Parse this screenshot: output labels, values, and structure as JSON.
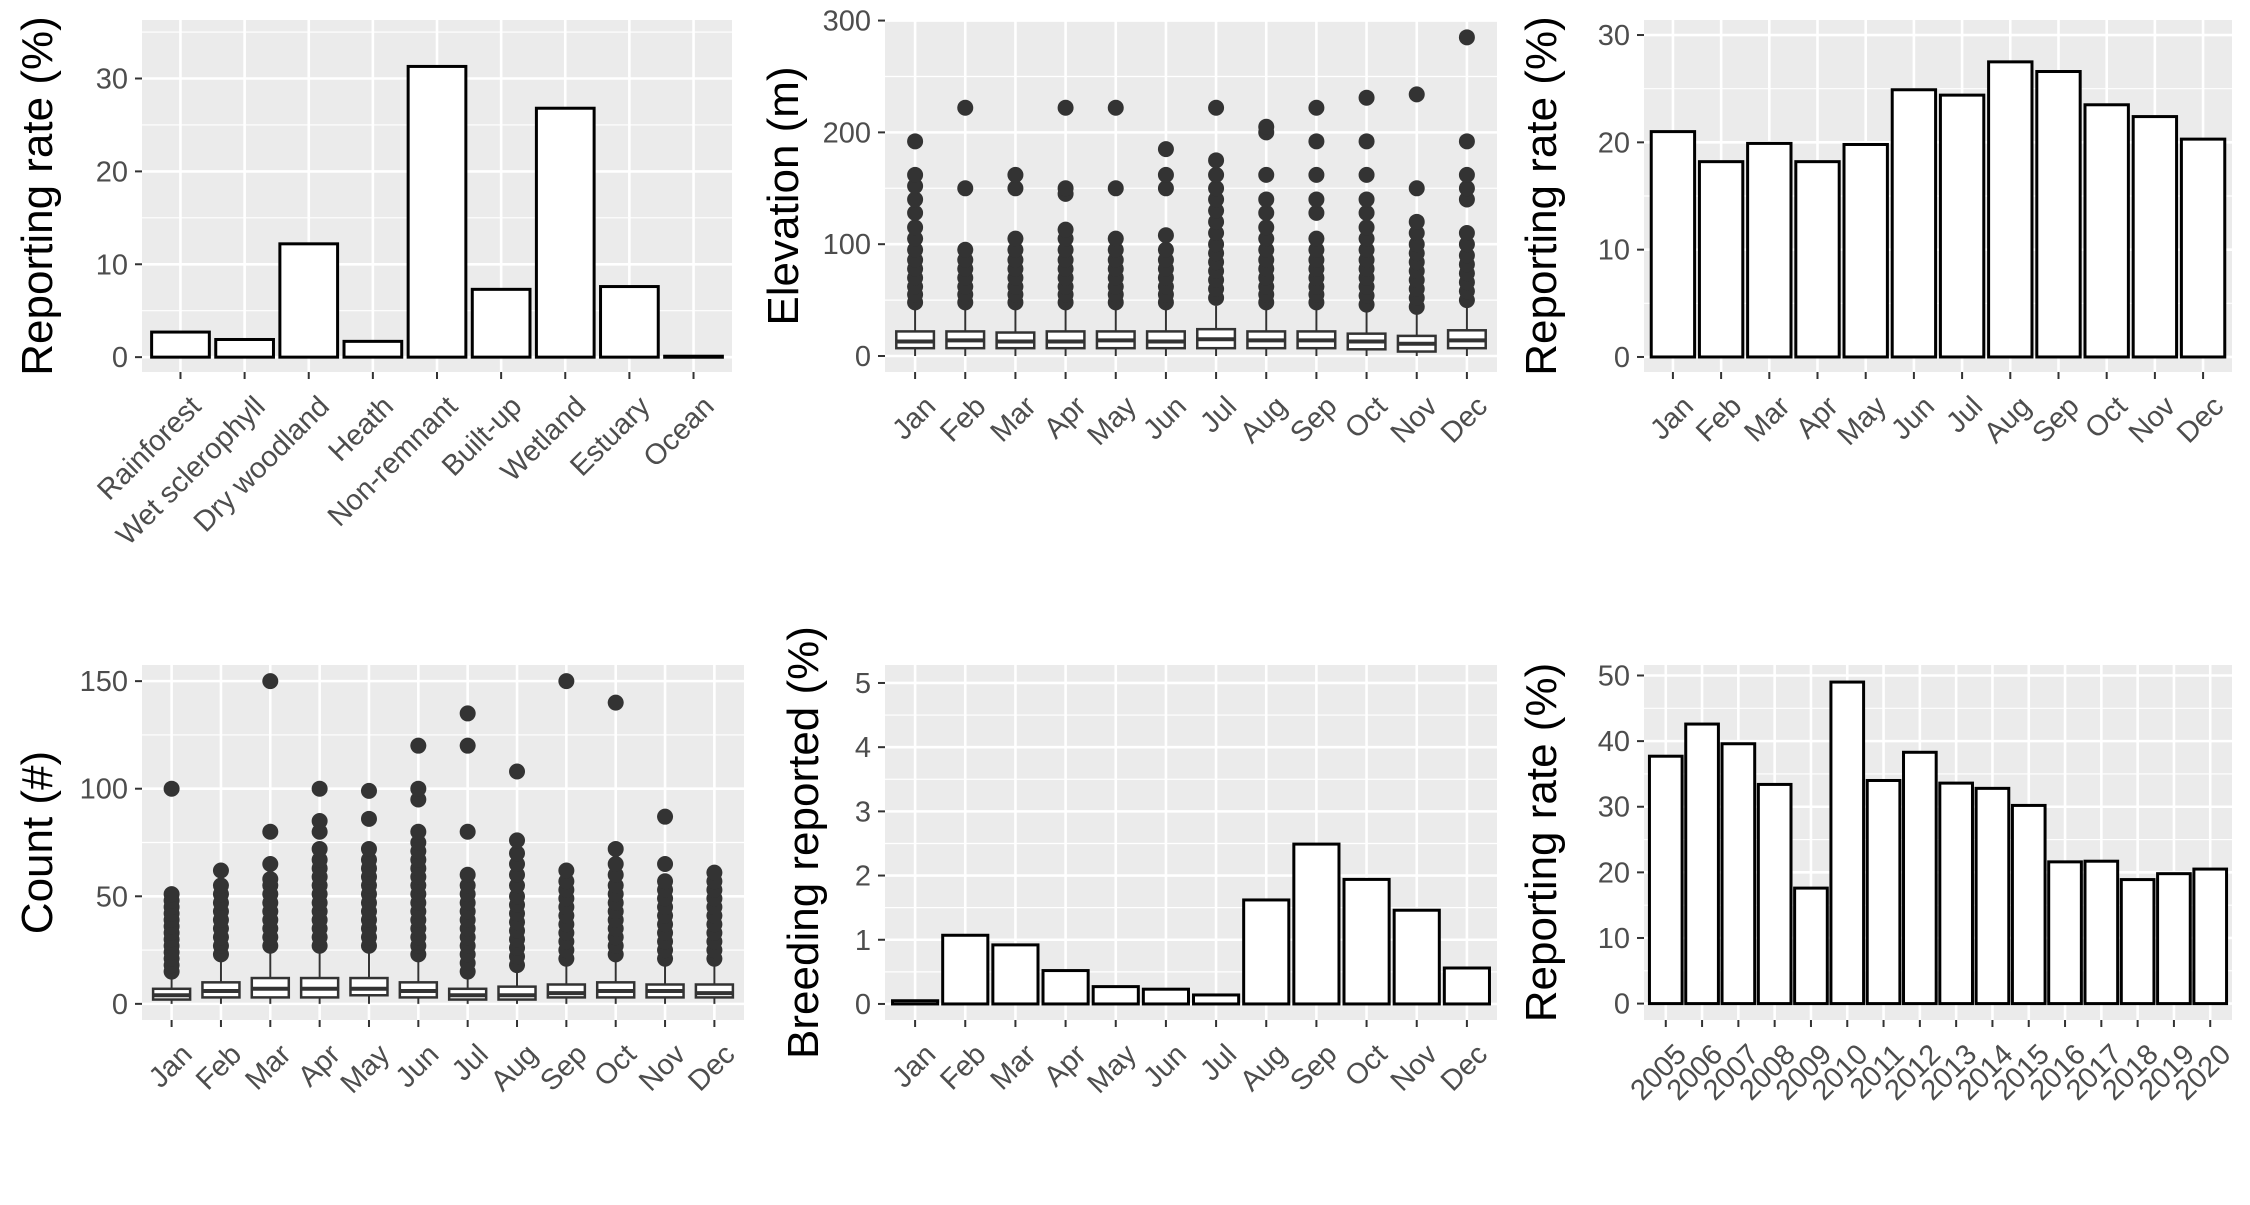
{
  "style": {
    "panel_background": "#ebebeb",
    "grid_color": "#ffffff",
    "bar_fill": "#ffffff",
    "bar_stroke": "#000000",
    "box_color": "#333333",
    "tick_text_color": "#4d4d4d",
    "title_color": "#000000"
  },
  "chart_data": [
    {
      "id": "habitat",
      "type": "bar",
      "ylabel": "Reporting rate (%)",
      "categories": [
        "Rainforest",
        "Wet sclerophyll",
        "Dry woodland",
        "Heath",
        "Non-remnant",
        "Built-up",
        "Wetland",
        "Estuary",
        "Ocean"
      ],
      "values": [
        2.7,
        1.9,
        12.2,
        1.7,
        31.3,
        7.3,
        26.8,
        7.6,
        0.1
      ],
      "ylim": [
        -1.6,
        36.3
      ],
      "yticks": [
        0,
        10,
        20,
        30
      ],
      "grid": true
    },
    {
      "id": "elevation",
      "type": "boxplot",
      "ylabel": "Elevation (m)",
      "categories": [
        "Jan",
        "Feb",
        "Mar",
        "Apr",
        "May",
        "Jun",
        "Jul",
        "Aug",
        "Sep",
        "Oct",
        "Nov",
        "Dec"
      ],
      "boxes": [
        {
          "q1": 7,
          "median": 13,
          "q3": 22,
          "whisker_low": 0,
          "whisker_high": 42,
          "outliers": [
            48,
            55,
            62,
            70,
            78,
            86,
            95,
            105,
            115,
            128,
            140,
            152,
            162,
            192
          ]
        },
        {
          "q1": 7,
          "median": 14,
          "q3": 22,
          "whisker_low": 0,
          "whisker_high": 42,
          "outliers": [
            48,
            55,
            62,
            70,
            78,
            86,
            95,
            150,
            222
          ]
        },
        {
          "q1": 7,
          "median": 13,
          "q3": 21,
          "whisker_low": 0,
          "whisker_high": 42,
          "outliers": [
            48,
            55,
            62,
            70,
            78,
            86,
            95,
            105,
            150,
            162
          ]
        },
        {
          "q1": 7,
          "median": 13,
          "q3": 22,
          "whisker_low": 0,
          "whisker_high": 42,
          "outliers": [
            48,
            55,
            62,
            70,
            78,
            86,
            95,
            105,
            113,
            145,
            150,
            222
          ]
        },
        {
          "q1": 7,
          "median": 14,
          "q3": 22,
          "whisker_low": 0,
          "whisker_high": 42,
          "outliers": [
            48,
            55,
            62,
            70,
            78,
            86,
            95,
            105,
            150,
            222
          ]
        },
        {
          "q1": 7,
          "median": 13,
          "q3": 22,
          "whisker_low": 0,
          "whisker_high": 42,
          "outliers": [
            48,
            55,
            62,
            70,
            78,
            86,
            95,
            108,
            150,
            162,
            185
          ]
        },
        {
          "q1": 7,
          "median": 15,
          "q3": 24,
          "whisker_low": 0,
          "whisker_high": 45,
          "outliers": [
            52,
            60,
            68,
            76,
            84,
            92,
            100,
            110,
            120,
            130,
            140,
            150,
            162,
            175,
            222
          ]
        },
        {
          "q1": 7,
          "median": 14,
          "q3": 22,
          "whisker_low": 0,
          "whisker_high": 42,
          "outliers": [
            48,
            55,
            62,
            70,
            78,
            86,
            95,
            105,
            115,
            128,
            140,
            162,
            200,
            205
          ]
        },
        {
          "q1": 7,
          "median": 14,
          "q3": 22,
          "whisker_low": 0,
          "whisker_high": 42,
          "outliers": [
            48,
            55,
            62,
            70,
            78,
            86,
            95,
            105,
            128,
            140,
            162,
            192,
            222
          ]
        },
        {
          "q1": 6,
          "median": 13,
          "q3": 20,
          "whisker_low": 0,
          "whisker_high": 40,
          "outliers": [
            46,
            54,
            62,
            70,
            78,
            86,
            95,
            105,
            115,
            128,
            140,
            162,
            192,
            231
          ]
        },
        {
          "q1": 4,
          "median": 11,
          "q3": 18,
          "whisker_low": 0,
          "whisker_high": 38,
          "outliers": [
            44,
            52,
            60,
            68,
            76,
            84,
            92,
            100,
            110,
            120,
            150,
            234
          ]
        },
        {
          "q1": 7,
          "median": 14,
          "q3": 23,
          "whisker_low": 0,
          "whisker_high": 44,
          "outliers": [
            50,
            58,
            66,
            74,
            82,
            90,
            100,
            110,
            140,
            150,
            162,
            192,
            285
          ]
        }
      ],
      "ylim": [
        -14.3,
        300.5
      ],
      "yticks": [
        0,
        100,
        200,
        300
      ],
      "grid": true
    },
    {
      "id": "month-rate",
      "type": "bar",
      "ylabel": "Reporting rate (%)",
      "categories": [
        "Jan",
        "Feb",
        "Mar",
        "Apr",
        "May",
        "Jun",
        "Jul",
        "Aug",
        "Sep",
        "Oct",
        "Nov",
        "Dec"
      ],
      "values": [
        21.0,
        18.2,
        19.9,
        18.2,
        19.8,
        24.9,
        24.4,
        27.5,
        26.6,
        23.5,
        22.4,
        20.3
      ],
      "ylim": [
        -1.4,
        31.4
      ],
      "yticks": [
        0,
        10,
        20,
        30
      ],
      "grid": true
    },
    {
      "id": "count",
      "type": "boxplot",
      "ylabel": "Count (#)",
      "categories": [
        "Jan",
        "Feb",
        "Mar",
        "Apr",
        "May",
        "Jun",
        "Jul",
        "Aug",
        "Sep",
        "Oct",
        "Nov",
        "Dec"
      ],
      "boxes": [
        {
          "q1": 2,
          "median": 4,
          "q3": 7,
          "whisker_low": 0,
          "whisker_high": 13,
          "outliers": [
            15,
            18,
            21,
            24,
            27,
            30,
            33,
            36,
            39,
            42,
            45,
            48,
            51,
            100
          ]
        },
        {
          "q1": 3,
          "median": 6,
          "q3": 10,
          "whisker_low": 0,
          "whisker_high": 20,
          "outliers": [
            23,
            27,
            31,
            35,
            39,
            43,
            47,
            51,
            55,
            62
          ]
        },
        {
          "q1": 3,
          "median": 7,
          "q3": 12,
          "whisker_low": 0,
          "whisker_high": 24,
          "outliers": [
            27,
            31,
            35,
            39,
            43,
            47,
            51,
            55,
            58,
            65,
            80,
            150
          ]
        },
        {
          "q1": 3,
          "median": 7,
          "q3": 12,
          "whisker_low": 0,
          "whisker_high": 24,
          "outliers": [
            27,
            31,
            35,
            39,
            43,
            47,
            51,
            55,
            59,
            63,
            67,
            72,
            80,
            85,
            100
          ]
        },
        {
          "q1": 4,
          "median": 7,
          "q3": 12,
          "whisker_low": 0,
          "whisker_high": 24,
          "outliers": [
            27,
            31,
            35,
            39,
            43,
            47,
            51,
            55,
            59,
            63,
            67,
            72,
            86,
            99
          ]
        },
        {
          "q1": 3,
          "median": 6,
          "q3": 10,
          "whisker_low": 0,
          "whisker_high": 20,
          "outliers": [
            23,
            27,
            31,
            35,
            39,
            43,
            47,
            51,
            55,
            59,
            63,
            67,
            71,
            75,
            80,
            95,
            100,
            120
          ]
        },
        {
          "q1": 2,
          "median": 4,
          "q3": 7,
          "whisker_low": 0,
          "whisker_high": 13,
          "outliers": [
            15,
            19,
            23,
            27,
            31,
            35,
            39,
            43,
            47,
            51,
            55,
            60,
            80,
            120,
            135
          ]
        },
        {
          "q1": 2,
          "median": 4,
          "q3": 8,
          "whisker_low": 0,
          "whisker_high": 15,
          "outliers": [
            18,
            22,
            26,
            30,
            34,
            38,
            42,
            46,
            50,
            55,
            60,
            65,
            70,
            76,
            108
          ]
        },
        {
          "q1": 3,
          "median": 5,
          "q3": 9,
          "whisker_low": 0,
          "whisker_high": 18,
          "outliers": [
            21,
            25,
            29,
            33,
            37,
            41,
            45,
            49,
            53,
            57,
            62,
            150
          ]
        },
        {
          "q1": 3,
          "median": 6,
          "q3": 10,
          "whisker_low": 0,
          "whisker_high": 20,
          "outliers": [
            23,
            27,
            31,
            35,
            39,
            43,
            47,
            51,
            55,
            60,
            65,
            72,
            140
          ]
        },
        {
          "q1": 3,
          "median": 6,
          "q3": 9,
          "whisker_low": 0,
          "whisker_high": 18,
          "outliers": [
            21,
            25,
            29,
            33,
            37,
            41,
            45,
            49,
            53,
            57,
            65,
            87
          ]
        },
        {
          "q1": 3,
          "median": 5,
          "q3": 9,
          "whisker_low": 0,
          "whisker_high": 18,
          "outliers": [
            21,
            25,
            29,
            33,
            37,
            41,
            45,
            49,
            53,
            57,
            61
          ]
        }
      ],
      "ylim": [
        -7.5,
        157.5
      ],
      "yticks": [
        0,
        50,
        100,
        150
      ],
      "grid": true
    },
    {
      "id": "breeding",
      "type": "bar",
      "ylabel": "Breeding reported (%)",
      "categories": [
        "Jan",
        "Feb",
        "Mar",
        "Apr",
        "May",
        "Jun",
        "Jul",
        "Aug",
        "Sep",
        "Oct",
        "Nov",
        "Dec"
      ],
      "values": [
        0.05,
        1.07,
        0.92,
        0.52,
        0.27,
        0.23,
        0.14,
        1.62,
        2.49,
        1.94,
        1.46,
        0.56
      ],
      "ylim": [
        -0.25,
        5.28
      ],
      "yticks": [
        0,
        1,
        2,
        3,
        4,
        5
      ],
      "grid": true
    },
    {
      "id": "year-rate",
      "type": "bar",
      "ylabel": "Reporting rate (%)",
      "categories": [
        "2005",
        "2006",
        "2007",
        "2008",
        "2009",
        "2010",
        "2011",
        "2012",
        "2013",
        "2014",
        "2015",
        "2016",
        "2017",
        "2018",
        "2019",
        "2020"
      ],
      "values": [
        37.7,
        42.6,
        39.6,
        33.4,
        17.6,
        49.0,
        34.0,
        38.3,
        33.6,
        32.8,
        30.2,
        21.6,
        21.7,
        18.9,
        19.8,
        20.5
      ],
      "ylim": [
        -2.5,
        51.6
      ],
      "yticks": [
        0,
        10,
        20,
        30,
        40,
        50
      ],
      "grid": true
    }
  ]
}
